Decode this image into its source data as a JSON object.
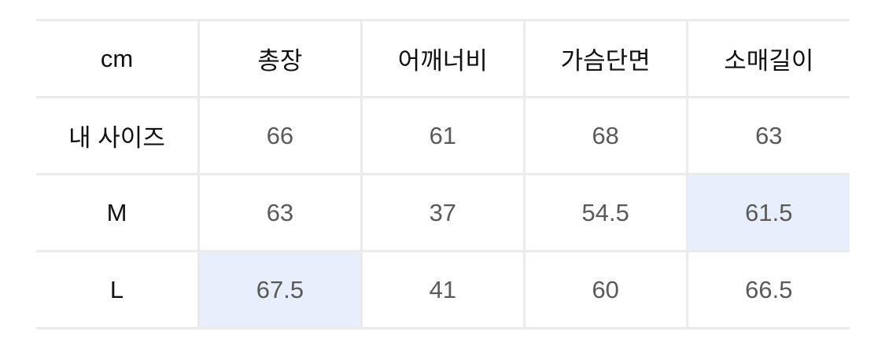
{
  "table": {
    "headers": [
      "cm",
      "총장",
      "어깨너비",
      "가슴단면",
      "소매길이"
    ],
    "rows": [
      {
        "label": "내 사이즈",
        "values": [
          "66",
          "61",
          "68",
          "63"
        ]
      },
      {
        "label": "M",
        "values": [
          "63",
          "37",
          "54.5",
          "61.5"
        ]
      },
      {
        "label": "L",
        "values": [
          "67.5",
          "41",
          "60",
          "66.5"
        ]
      }
    ],
    "highlight_color": "#e8eefb"
  }
}
